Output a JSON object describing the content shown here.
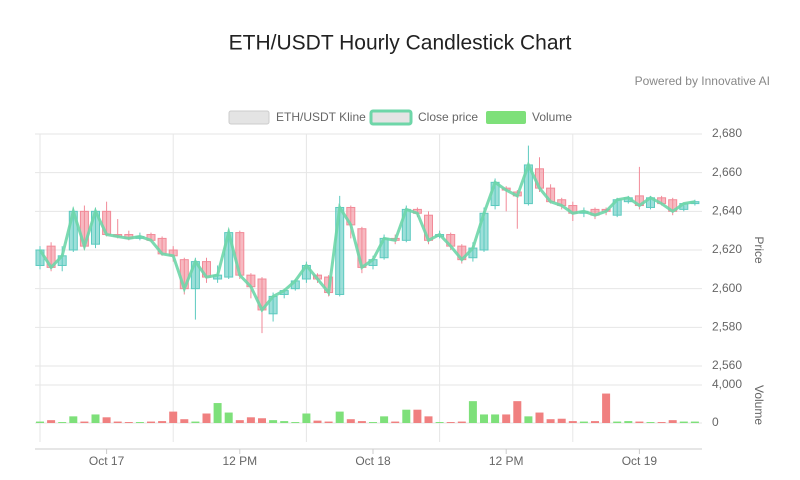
{
  "chart_data": {
    "type": "candlestick",
    "title": "ETH/USDT Hourly Candlestick Chart",
    "subtitle": "Powered by Innovative AI",
    "legend": [
      "ETH/USDT Kline",
      "Close price",
      "Volume"
    ],
    "ylabel": "Price",
    "y2label": "Volume",
    "categories": [
      null,
      null,
      null,
      null,
      null,
      null,
      "Oct 17",
      null,
      null,
      null,
      null,
      null,
      null,
      null,
      null,
      null,
      null,
      null,
      "12 PM",
      null,
      null,
      null,
      null,
      null,
      null,
      null,
      null,
      null,
      null,
      null,
      "Oct 18",
      null,
      null,
      null,
      null,
      null,
      null,
      null,
      null,
      null,
      null,
      null,
      "12 PM",
      null,
      null,
      null,
      null,
      null,
      null,
      null,
      null,
      null,
      null,
      null,
      "Oct 19",
      null,
      null,
      null,
      null,
      null
    ],
    "open": [
      2612,
      2622,
      2612,
      2620,
      2640,
      2623,
      2640,
      2628,
      2628,
      2626,
      2628,
      2626,
      2620,
      2615,
      2600,
      2614,
      2605,
      2606,
      2629,
      2607,
      2605,
      2587,
      2597,
      2600,
      2605,
      2607,
      2606,
      2597,
      2642,
      2631,
      2612,
      2616,
      2626,
      2625,
      2641,
      2638,
      2627,
      2628,
      2622,
      2616,
      2620,
      2643,
      2652,
      2650,
      2644,
      2662,
      2652,
      2646,
      2643,
      2639,
      2641,
      2641,
      2638,
      2645,
      2648,
      2642,
      2647,
      2646,
      2641,
      2644
    ],
    "high": [
      2622,
      2624,
      2622,
      2642,
      2643,
      2642,
      2645,
      2636,
      2630,
      2629,
      2629,
      2627,
      2622,
      2616,
      2616,
      2616,
      2612,
      2631,
      2630,
      2608,
      2606,
      2598,
      2600,
      2605,
      2614,
      2608,
      2607,
      2648,
      2643,
      2632,
      2617,
      2628,
      2628,
      2643,
      2642,
      2640,
      2630,
      2629,
      2623,
      2624,
      2642,
      2657,
      2653,
      2651,
      2674,
      2668,
      2654,
      2647,
      2645,
      2642,
      2642,
      2642,
      2647,
      2648,
      2663,
      2648,
      2648,
      2647,
      2643,
      2646
    ],
    "low": [
      2610,
      2609,
      2609,
      2619,
      2620,
      2621,
      2627,
      2626,
      2625,
      2625,
      2624,
      2617,
      2614,
      2597,
      2584,
      2603,
      2603,
      2605,
      2605,
      2595,
      2577,
      2583,
      2595,
      2599,
      2603,
      2603,
      2596,
      2596,
      2626,
      2608,
      2610,
      2615,
      2623,
      2624,
      2637,
      2623,
      2626,
      2620,
      2613,
      2614,
      2619,
      2641,
      2640,
      2631,
      2643,
      2650,
      2644,
      2641,
      2635,
      2637,
      2636,
      2638,
      2637,
      2644,
      2641,
      2641,
      2643,
      2638,
      2640,
      2643
    ],
    "close": [
      2620,
      2611,
      2617,
      2640,
      2622,
      2640,
      2628,
      2627,
      2626,
      2627,
      2625,
      2618,
      2617,
      2600,
      2614,
      2606,
      2607,
      2629,
      2607,
      2601,
      2589,
      2596,
      2599,
      2604,
      2612,
      2605,
      2598,
      2642,
      2633,
      2611,
      2615,
      2626,
      2625,
      2641,
      2639,
      2625,
      2628,
      2622,
      2615,
      2621,
      2639,
      2655,
      2651,
      2648,
      2664,
      2652,
      2645,
      2643,
      2639,
      2640,
      2638,
      2640,
      2646,
      2647,
      2643,
      2647,
      2644,
      2640,
      2644,
      2645
    ],
    "volume": [
      150,
      300,
      100,
      700,
      150,
      900,
      600,
      150,
      100,
      100,
      150,
      200,
      1200,
      400,
      150,
      1000,
      2100,
      1100,
      300,
      600,
      500,
      300,
      200,
      100,
      1000,
      250,
      150,
      1200,
      400,
      200,
      100,
      700,
      150,
      1400,
      1400,
      700,
      100,
      100,
      150,
      2300,
      900,
      900,
      900,
      2300,
      700,
      1100,
      400,
      450,
      200,
      150,
      200,
      3100,
      150,
      200,
      150,
      100,
      100,
      300,
      150,
      150
    ],
    "up_color": "#5ccabf",
    "down_color": "#f28a98",
    "line_color": "#6ed6a8",
    "volume_up_color": "#7ee07a",
    "volume_down_color": "#f08080",
    "ylim": [
      2560,
      2680
    ],
    "yticks": [
      {
        "value": 2560,
        "label": "2,560"
      },
      {
        "value": 2580,
        "label": "2,580"
      },
      {
        "value": 2600,
        "label": "2,600"
      },
      {
        "value": 2620,
        "label": "2,620"
      },
      {
        "value": 2640,
        "label": "2,640"
      },
      {
        "value": 2660,
        "label": "2,660"
      },
      {
        "value": 2680,
        "label": "2,680"
      }
    ],
    "y2lim": [
      -2000,
      4000
    ],
    "y2ticks": [
      0,
      {
        "value": 4000,
        "label": "4,000"
      }
    ],
    "grid": true
  }
}
